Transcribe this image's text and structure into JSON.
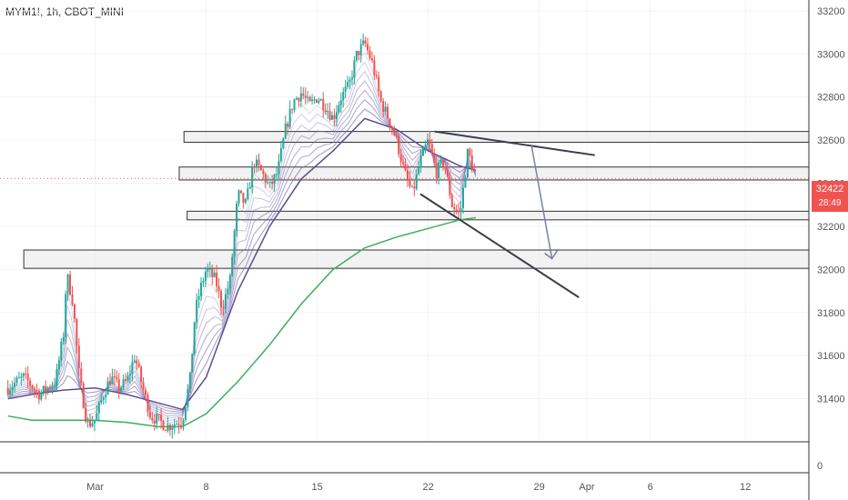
{
  "header": {
    "ticker": "MYM1!, 1h, CBOT_MINI"
  },
  "price_tag": {
    "price": "32422",
    "countdown": "28:49",
    "color": "#ef5350"
  },
  "colors": {
    "up": "#26a69a",
    "down": "#ef5350",
    "ma_slow": "#3cae5c",
    "ma_ribbon": "#7b6fb0",
    "drawing": "#3a3f4a",
    "zone_fill": "#e8e8e8",
    "zone_border": "#333333",
    "arrow": "#7a7fa8"
  },
  "chart_data": {
    "type": "candlestick",
    "x_axis_labels": [
      {
        "label": "Mar",
        "x": 4
      },
      {
        "label": "8",
        "x": 11
      },
      {
        "label": "15",
        "x": 18
      },
      {
        "label": "22",
        "x": 25
      },
      {
        "label": "29",
        "x": 32
      },
      {
        "label": "Apr",
        "x": 35
      },
      {
        "label": "6",
        "x": 39
      },
      {
        "label": "12",
        "x": 45
      }
    ],
    "y_ticks": [
      33200,
      33000,
      32800,
      32600,
      32400,
      32200,
      32000,
      31800,
      31600,
      31400
    ],
    "y_zero_label": "0",
    "ylim": [
      31200,
      33250
    ],
    "xlim": [
      -2,
      49
    ],
    "last_price": 32422,
    "close_path": [
      [
        -1.5,
        31450
      ],
      [
        -0.5,
        31500
      ],
      [
        0.5,
        31420
      ],
      [
        1.5,
        31480
      ],
      [
        2.0,
        31700
      ],
      [
        2.2,
        31980
      ],
      [
        2.6,
        31850
      ],
      [
        3.0,
        31500
      ],
      [
        3.5,
        31280
      ],
      [
        4.0,
        31300
      ],
      [
        4.5,
        31420
      ],
      [
        5.0,
        31500
      ],
      [
        5.5,
        31450
      ],
      [
        6.0,
        31480
      ],
      [
        6.5,
        31600
      ],
      [
        7.0,
        31450
      ],
      [
        7.5,
        31320
      ],
      [
        8.0,
        31300
      ],
      [
        8.5,
        31270
      ],
      [
        9.5,
        31300
      ],
      [
        10.0,
        31500
      ],
      [
        10.3,
        31800
      ],
      [
        10.6,
        31900
      ],
      [
        11.0,
        32000
      ],
      [
        11.6,
        31950
      ],
      [
        12.0,
        31820
      ],
      [
        12.5,
        31950
      ],
      [
        13.0,
        32350
      ],
      [
        13.5,
        32300
      ],
      [
        14.0,
        32500
      ],
      [
        14.5,
        32450
      ],
      [
        15.0,
        32380
      ],
      [
        15.5,
        32450
      ],
      [
        16.0,
        32650
      ],
      [
        16.5,
        32780
      ],
      [
        17.0,
        32820
      ],
      [
        17.5,
        32760
      ],
      [
        18.0,
        32800
      ],
      [
        18.5,
        32760
      ],
      [
        19.0,
        32700
      ],
      [
        19.5,
        32800
      ],
      [
        20.0,
        32850
      ],
      [
        20.5,
        33000
      ],
      [
        21.0,
        33050
      ],
      [
        21.5,
        32950
      ],
      [
        22.0,
        32780
      ],
      [
        22.5,
        32700
      ],
      [
        23.0,
        32600
      ],
      [
        23.5,
        32450
      ],
      [
        24.0,
        32350
      ],
      [
        24.5,
        32500
      ],
      [
        25.0,
        32600
      ],
      [
        25.5,
        32450
      ],
      [
        26.0,
        32500
      ],
      [
        26.5,
        32300
      ],
      [
        27.0,
        32250
      ],
      [
        27.5,
        32550
      ],
      [
        28.0,
        32422
      ]
    ],
    "ma_slow": [
      [
        -1.5,
        31320
      ],
      [
        0,
        31300
      ],
      [
        2,
        31300
      ],
      [
        4,
        31300
      ],
      [
        6,
        31290
      ],
      [
        8,
        31270
      ],
      [
        9.5,
        31270
      ],
      [
        11,
        31330
      ],
      [
        13,
        31480
      ],
      [
        15,
        31650
      ],
      [
        17,
        31840
      ],
      [
        19,
        32000
      ],
      [
        21,
        32100
      ],
      [
        23,
        32150
      ],
      [
        25,
        32190
      ],
      [
        27,
        32230
      ],
      [
        28,
        32240
      ]
    ],
    "ma_mid": [
      [
        -1.5,
        31400
      ],
      [
        0,
        31420
      ],
      [
        2,
        31440
      ],
      [
        4,
        31450
      ],
      [
        6,
        31420
      ],
      [
        8,
        31380
      ],
      [
        9.5,
        31350
      ],
      [
        11,
        31500
      ],
      [
        13,
        31900
      ],
      [
        15,
        32200
      ],
      [
        17,
        32420
      ],
      [
        19,
        32550
      ],
      [
        21,
        32700
      ],
      [
        23,
        32650
      ],
      [
        25,
        32550
      ],
      [
        27,
        32480
      ],
      [
        28,
        32460
      ]
    ],
    "zones": [
      {
        "x0": 9.6,
        "x1": 49,
        "y_low": 32590,
        "y_high": 32640
      },
      {
        "x0": 9.3,
        "x1": 49,
        "y_low": 32415,
        "y_high": 32475
      },
      {
        "x0": 9.8,
        "x1": 49,
        "y_low": 32230,
        "y_high": 32270
      },
      {
        "x0": -0.5,
        "x1": 49,
        "y_low": 32005,
        "y_high": 32090
      }
    ],
    "lines": [
      {
        "x0": 25.4,
        "y0": 32640,
        "x1": 35.5,
        "y1": 32530
      },
      {
        "x0": 24.5,
        "y0": 32350,
        "x1": 34.5,
        "y1": 31870
      }
    ],
    "arrow": {
      "x0": 31.5,
      "y0": 32580,
      "x1": 32.8,
      "y1": 32050
    }
  }
}
